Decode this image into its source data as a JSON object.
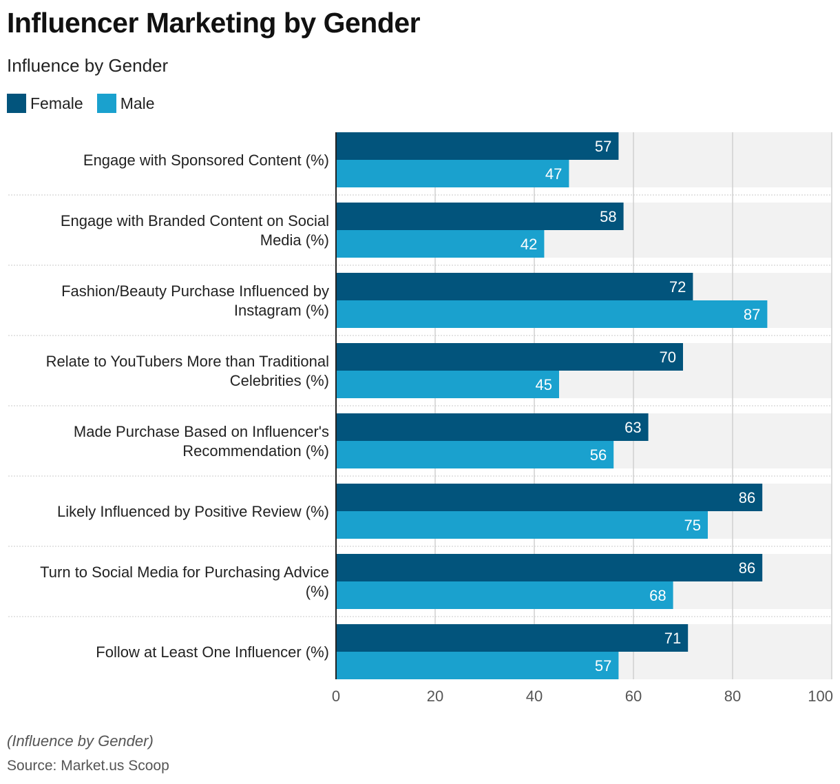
{
  "chart_data": {
    "type": "bar",
    "orientation": "horizontal",
    "title": "Influencer Marketing by Gender",
    "subtitle": "Influence by Gender",
    "footnote": "(Influence by Gender)",
    "source": "Source: Market.us Scoop",
    "xlabel": "",
    "ylabel": "",
    "xlim": [
      0,
      100
    ],
    "ticks": [
      0,
      20,
      40,
      60,
      80,
      100
    ],
    "grid": true,
    "legend_position": "top-left",
    "categories": [
      [
        "Engage with Sponsored Content (%)"
      ],
      [
        "Engage with Branded Content on Social",
        "Media (%)"
      ],
      [
        "Fashion/Beauty Purchase Influenced by",
        "Instagram (%)"
      ],
      [
        "Relate to YouTubers More than Traditional",
        "Celebrities (%)"
      ],
      [
        "Made Purchase Based on Influencer's",
        "Recommendation (%)"
      ],
      [
        "Likely Influenced by Positive Review (%)"
      ],
      [
        "Turn to Social Media for Purchasing Advice",
        "(%)"
      ],
      [
        "Follow at Least One Influencer (%)"
      ]
    ],
    "series": [
      {
        "name": "Female",
        "color": "#02547c",
        "values": [
          57,
          58,
          72,
          70,
          63,
          86,
          86,
          71
        ]
      },
      {
        "name": "Male",
        "color": "#1aa1ce",
        "values": [
          47,
          42,
          87,
          45,
          56,
          75,
          68,
          57
        ]
      }
    ]
  }
}
